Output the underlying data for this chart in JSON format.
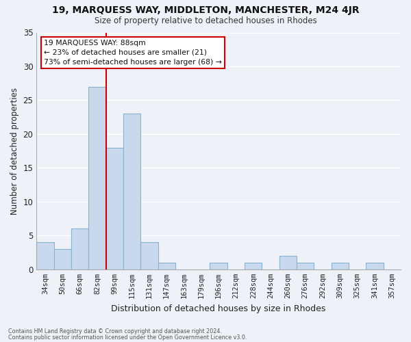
{
  "title": "19, MARQUESS WAY, MIDDLETON, MANCHESTER, M24 4JR",
  "subtitle": "Size of property relative to detached houses in Rhodes",
  "xlabel": "Distribution of detached houses by size in Rhodes",
  "ylabel": "Number of detached properties",
  "bar_color": "#c8d9ed",
  "bar_edge_color": "#8ab0d0",
  "background_color": "#eef2f8",
  "grid_color": "#ffffff",
  "categories": [
    "34sqm",
    "50sqm",
    "66sqm",
    "82sqm",
    "99sqm",
    "115sqm",
    "131sqm",
    "147sqm",
    "163sqm",
    "179sqm",
    "196sqm",
    "212sqm",
    "228sqm",
    "244sqm",
    "260sqm",
    "276sqm",
    "292sqm",
    "309sqm",
    "325sqm",
    "341sqm",
    "357sqm"
  ],
  "values": [
    4,
    3,
    6,
    27,
    18,
    23,
    4,
    1,
    0,
    0,
    1,
    0,
    1,
    0,
    2,
    1,
    0,
    1,
    0,
    1,
    0
  ],
  "red_line_bin": 3,
  "ylim": [
    0,
    35
  ],
  "yticks": [
    0,
    5,
    10,
    15,
    20,
    25,
    30,
    35
  ],
  "annotation_line1": "19 MARQUESS WAY: 88sqm",
  "annotation_line2": "← 23% of detached houses are smaller (21)",
  "annotation_line3": "73% of semi-detached houses are larger (68) →",
  "footnote1": "Contains HM Land Registry data © Crown copyright and database right 2024.",
  "footnote2": "Contains public sector information licensed under the Open Government Licence v3.0."
}
